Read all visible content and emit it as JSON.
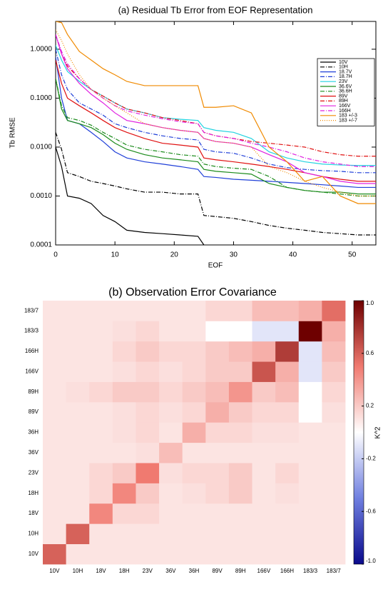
{
  "chart_data": [
    {
      "type": "line",
      "title": "(a) Residual Tb Error from EOF Representation",
      "xlabel": "EOF",
      "ylabel": "Tb RMSE",
      "xlim": [
        0,
        54
      ],
      "xticks": [
        0,
        10,
        20,
        30,
        40,
        50
      ],
      "ylim": [
        0.0001,
        3.7
      ],
      "log_y": true,
      "yticks": [
        {
          "value": 0.0001,
          "label": "0.0001"
        },
        {
          "value": 0.001,
          "label": "0.0010"
        },
        {
          "value": 0.01,
          "label": "0.0100"
        },
        {
          "value": 0.1,
          "label": "0.1000"
        },
        {
          "value": 1,
          "label": "1.0000"
        }
      ],
      "legend": "upper right",
      "x": [
        0,
        1,
        2,
        4,
        6,
        8,
        10,
        12,
        15,
        18,
        21,
        24,
        25,
        27,
        30,
        33,
        36,
        39,
        42,
        45,
        48,
        51,
        54
      ],
      "series": [
        {
          "name": "10V",
          "color": "#000000",
          "style": "solid",
          "values": [
            0.01,
            0.004,
            0.001,
            0.0009,
            0.0007,
            0.0004,
            0.0003,
            0.0002,
            0.00018,
            0.00017,
            0.00016,
            0.00015,
            0.0001,
            null,
            null,
            null,
            null,
            null,
            null,
            null,
            null,
            null,
            null
          ]
        },
        {
          "name": "10H",
          "color": "#000000",
          "style": "dashdot",
          "values": [
            0.02,
            0.009,
            0.003,
            0.0025,
            0.002,
            0.0018,
            0.0016,
            0.0014,
            0.0012,
            0.0012,
            0.0011,
            0.0011,
            0.0004,
            0.00038,
            0.00035,
            0.0003,
            0.00025,
            0.00022,
            0.0002,
            0.00018,
            0.00017,
            0.00016,
            0.00016
          ]
        },
        {
          "name": "18.7V",
          "color": "#1f3fd8",
          "style": "solid",
          "values": [
            0.7,
            0.1,
            0.035,
            0.03,
            0.02,
            0.013,
            0.008,
            0.006,
            0.005,
            0.0045,
            0.004,
            0.0035,
            0.0025,
            0.0024,
            0.0022,
            0.0021,
            0.002,
            0.0019,
            0.0018,
            0.0017,
            0.0016,
            0.0015,
            0.0015
          ]
        },
        {
          "name": "18.7H",
          "color": "#1f3fd8",
          "style": "dashdot",
          "values": [
            1.0,
            0.3,
            0.15,
            0.08,
            0.06,
            0.045,
            0.03,
            0.025,
            0.02,
            0.017,
            0.015,
            0.014,
            0.009,
            0.008,
            0.0075,
            0.006,
            0.0045,
            0.0038,
            0.0035,
            0.0033,
            0.0032,
            0.003,
            0.003
          ]
        },
        {
          "name": "23V",
          "color": "#22d3e0",
          "style": "solid",
          "values": [
            1.2,
            0.6,
            0.35,
            0.22,
            0.15,
            0.11,
            0.08,
            0.06,
            0.05,
            0.04,
            0.037,
            0.035,
            0.025,
            0.022,
            0.02,
            0.015,
            0.008,
            0.006,
            0.005,
            0.0045,
            0.0043,
            0.0042,
            0.0042
          ]
        },
        {
          "name": "36.6V",
          "color": "#1a8a1a",
          "style": "solid",
          "values": [
            0.25,
            0.06,
            0.035,
            0.03,
            0.025,
            0.018,
            0.012,
            0.009,
            0.007,
            0.006,
            0.0055,
            0.005,
            0.0035,
            0.0032,
            0.003,
            0.0028,
            0.0018,
            0.0015,
            0.0013,
            0.0012,
            0.0012,
            0.0011,
            0.0011
          ]
        },
        {
          "name": "36.6H",
          "color": "#1a8a1a",
          "style": "dashdot",
          "values": [
            0.25,
            0.07,
            0.04,
            0.035,
            0.028,
            0.02,
            0.015,
            0.011,
            0.009,
            0.008,
            0.007,
            0.0065,
            0.0045,
            0.004,
            0.0037,
            0.0035,
            0.0025,
            0.0015,
            0.0013,
            0.0012,
            0.0011,
            0.001,
            0.001
          ]
        },
        {
          "name": "89V",
          "color": "#e01010",
          "style": "solid",
          "values": [
            0.6,
            0.2,
            0.1,
            0.07,
            0.05,
            0.035,
            0.025,
            0.02,
            0.015,
            0.012,
            0.011,
            0.01,
            0.006,
            0.0055,
            0.005,
            0.0045,
            0.004,
            0.0035,
            0.003,
            0.0025,
            0.0022,
            0.002,
            0.002
          ]
        },
        {
          "name": "89H",
          "color": "#e01010",
          "style": "dashdot",
          "values": [
            2,
            0.8,
            0.45,
            0.25,
            0.15,
            0.11,
            0.08,
            0.06,
            0.05,
            0.04,
            0.035,
            0.03,
            0.02,
            0.017,
            0.015,
            0.013,
            0.012,
            0.011,
            0.01,
            0.008,
            0.007,
            0.0065,
            0.0065
          ]
        },
        {
          "name": "166V",
          "color": "#e020e0",
          "style": "solid",
          "values": [
            2,
            0.8,
            0.4,
            0.2,
            0.12,
            0.08,
            0.05,
            0.035,
            0.03,
            0.025,
            0.022,
            0.02,
            0.015,
            0.013,
            0.012,
            0.01,
            0.007,
            0.005,
            0.003,
            0.0025,
            0.002,
            0.0018,
            0.0018
          ]
        },
        {
          "name": "166H",
          "color": "#e020e0",
          "style": "dashdot",
          "values": [
            2,
            0.9,
            0.5,
            0.25,
            0.15,
            0.1,
            0.07,
            0.055,
            0.045,
            0.038,
            0.033,
            0.03,
            0.02,
            0.017,
            0.015,
            0.012,
            0.01,
            0.008,
            0.006,
            0.005,
            0.0045,
            0.004,
            0.004
          ]
        },
        {
          "name": "183 +/-3",
          "color": "#f08a00",
          "style": "solid",
          "values": [
            3.7,
            3.5,
            2,
            0.9,
            0.6,
            0.4,
            0.3,
            0.22,
            0.18,
            0.18,
            0.18,
            0.18,
            0.065,
            0.065,
            0.07,
            0.05,
            0.01,
            0.005,
            0.002,
            0.0025,
            0.001,
            0.0007,
            0.0007
          ]
        },
        {
          "name": "183 +/-7",
          "color": "#f08a00",
          "style": "dotted",
          "values": [
            2.5,
            1.5,
            0.8,
            0.3,
            0.15,
            0.1,
            0.07,
            0.05,
            0.03,
            0.025,
            0.022,
            0.02,
            0.015,
            0.013,
            0.012,
            0.01,
            0.004,
            0.003,
            0.002,
            0.0015,
            0.0012,
            0.001,
            0.001
          ]
        }
      ]
    },
    {
      "type": "heatmap",
      "title": "(b) Observation Error Covariance",
      "colorbar_label": "K^2",
      "x_categories": [
        "10V",
        "10H",
        "18V",
        "18H",
        "23V",
        "36V",
        "36H",
        "89V",
        "89H",
        "166V",
        "166H",
        "183/3",
        "183/7"
      ],
      "y_categories": [
        "10V",
        "10H",
        "18V",
        "18H",
        "23V",
        "36V",
        "36H",
        "89V",
        "89H",
        "166V",
        "166H",
        "183/3",
        "183/7"
      ],
      "clim": [
        -1,
        1
      ],
      "cticks": [
        {
          "value": 1,
          "label": "1.0"
        },
        0.6,
        0.2,
        -0.2,
        -0.6,
        {
          "value": -1,
          "label": "-1.0"
        }
      ],
      "values": [
        [
          0.6,
          0.1,
          0.1,
          0.1,
          0.1,
          0.1,
          0.1,
          0.1,
          0.1,
          0.1,
          0.1,
          0.1,
          0.1
        ],
        [
          0.1,
          0.6,
          0.1,
          0.1,
          0.1,
          0.1,
          0.1,
          0.1,
          0.1,
          0.1,
          0.1,
          0.1,
          0.1
        ],
        [
          0.1,
          0.1,
          0.45,
          0.15,
          0.15,
          0.1,
          0.1,
          0.1,
          0.1,
          0.1,
          0.1,
          0.1,
          0.1
        ],
        [
          0.1,
          0.1,
          0.15,
          0.45,
          0.2,
          0.1,
          0.12,
          0.15,
          0.2,
          0.1,
          0.12,
          0.1,
          0.1
        ],
        [
          0.1,
          0.1,
          0.15,
          0.2,
          0.5,
          0.12,
          0.15,
          0.15,
          0.2,
          0.1,
          0.15,
          0.1,
          0.1
        ],
        [
          0.1,
          0.1,
          0.1,
          0.1,
          0.12,
          0.25,
          0.1,
          0.1,
          0.1,
          0.1,
          0.1,
          0.1,
          0.1
        ],
        [
          0.1,
          0.1,
          0.1,
          0.12,
          0.15,
          0.1,
          0.3,
          0.15,
          0.15,
          0.12,
          0.12,
          0.1,
          0.1
        ],
        [
          0.1,
          0.1,
          0.1,
          0.12,
          0.15,
          0.12,
          0.15,
          0.3,
          0.2,
          0.15,
          0.15,
          0.0,
          0.12
        ],
        [
          0.1,
          0.12,
          0.15,
          0.2,
          0.2,
          0.15,
          0.2,
          0.25,
          0.4,
          0.2,
          0.25,
          0.0,
          0.15
        ],
        [
          0.1,
          0.1,
          0.1,
          0.12,
          0.15,
          0.12,
          0.15,
          0.2,
          0.2,
          0.65,
          0.3,
          -0.1,
          0.2
        ],
        [
          0.1,
          0.1,
          0.1,
          0.15,
          0.2,
          0.15,
          0.15,
          0.2,
          0.25,
          0.3,
          0.75,
          -0.1,
          0.25
        ],
        [
          0.1,
          0.1,
          0.1,
          0.12,
          0.15,
          0.1,
          0.1,
          0.0,
          0.0,
          -0.1,
          -0.1,
          1.0,
          0.3
        ],
        [
          0.1,
          0.1,
          0.1,
          0.1,
          0.1,
          0.1,
          0.1,
          0.15,
          0.15,
          0.25,
          0.25,
          0.3,
          0.55
        ]
      ]
    }
  ]
}
